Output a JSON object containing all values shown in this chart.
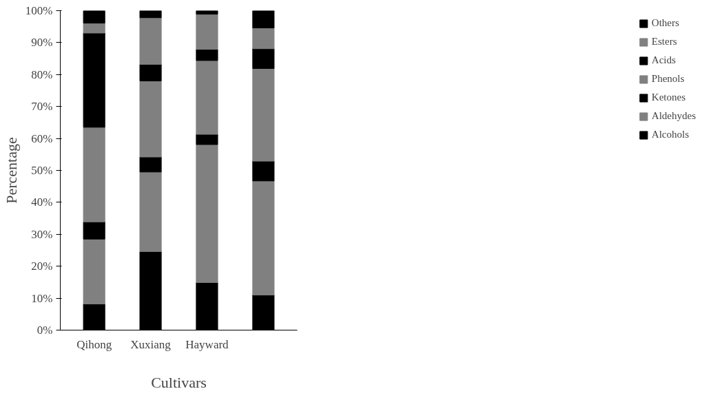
{
  "chart_data": {
    "type": "bar",
    "stacked": true,
    "xlabel": "Cultivars",
    "ylabel": "Percentage",
    "categories": [
      "Qihong",
      "Xuxiang",
      "Hayward",
      null
    ],
    "ylim": [
      0,
      100
    ],
    "yticks": [
      {
        "value": 0,
        "label": "0%"
      },
      {
        "value": 10,
        "label": "10%"
      },
      {
        "value": 20,
        "label": "20%"
      },
      {
        "value": 30,
        "label": "30%"
      },
      {
        "value": 40,
        "label": "40%"
      },
      {
        "value": 50,
        "label": "50%"
      },
      {
        "value": 60,
        "label": "60%"
      },
      {
        "value": 70,
        "label": "70%"
      },
      {
        "value": 80,
        "label": "80%"
      },
      {
        "value": 90,
        "label": "90%"
      },
      {
        "value": 100,
        "label": "100%"
      }
    ],
    "grid": false,
    "legend": "right",
    "series": [
      {
        "name": "Alcohols",
        "color": "#000000",
        "values": [
          8.2,
          24.6,
          14.9,
          11.0
        ]
      },
      {
        "name": "Aldehydes",
        "color": "#808080",
        "values": [
          20.3,
          24.9,
          43.2,
          35.7
        ]
      },
      {
        "name": "Ketones",
        "color": "#000000",
        "values": [
          5.4,
          4.7,
          3.2,
          6.2
        ]
      },
      {
        "name": "Phenols",
        "color": "#808080",
        "values": [
          29.6,
          23.8,
          23.1,
          29.0
        ]
      },
      {
        "name": "Acids",
        "color": "#000000",
        "values": [
          29.5,
          5.2,
          3.5,
          6.2
        ]
      },
      {
        "name": "Esters",
        "color": "#808080",
        "values": [
          3.1,
          14.6,
          11.0,
          6.5
        ]
      },
      {
        "name": "Others",
        "color": "#000000",
        "values": [
          3.9,
          2.2,
          1.1,
          5.4
        ]
      }
    ]
  }
}
